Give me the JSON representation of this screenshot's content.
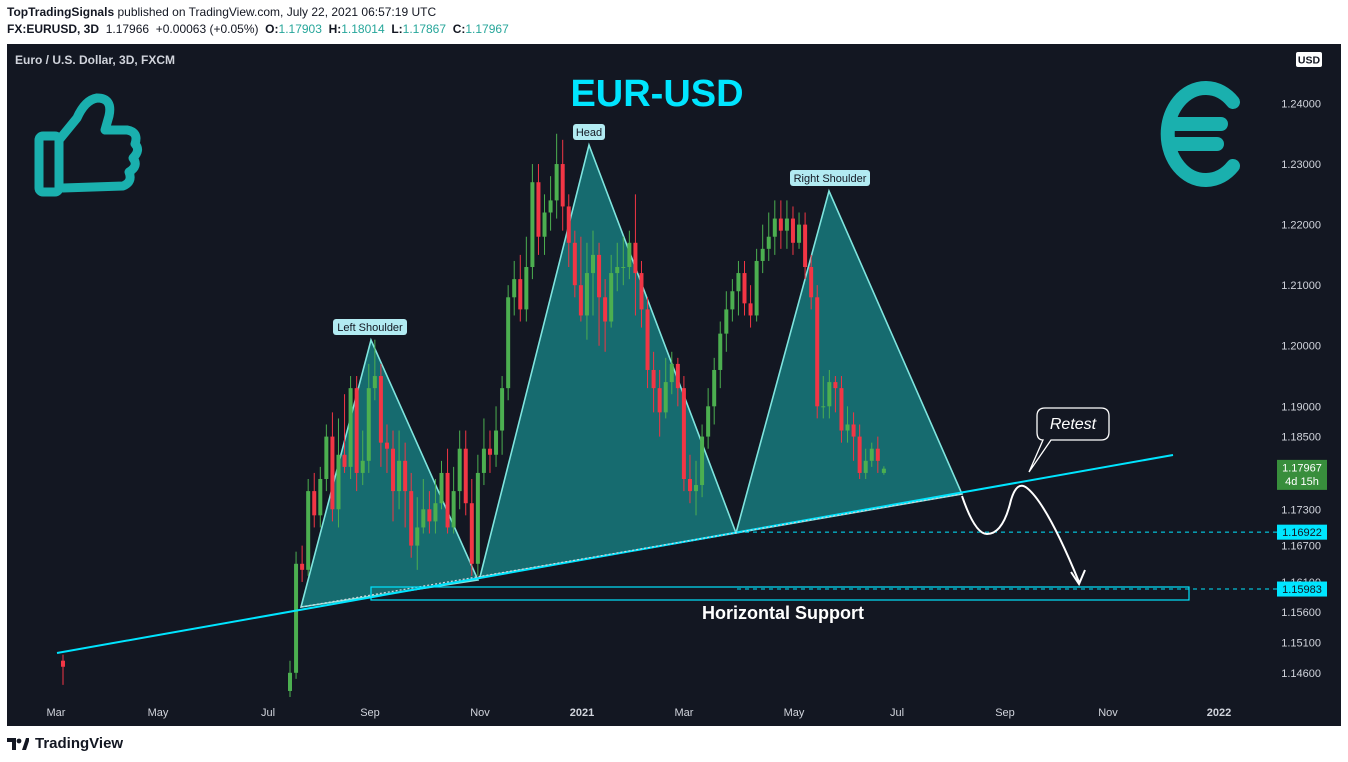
{
  "header": {
    "publisher": "TopTradingSignals",
    "published_text": "published on TradingView.com, July 22, 2021 06:57:19 UTC",
    "symbol": "FX:EURUSD, 3D",
    "last": "1.17966",
    "change": "+0.00063 (+0.05%)",
    "o_label": "O:",
    "o": "1.17903",
    "h_label": "H:",
    "h": "1.18014",
    "l_label": "L:",
    "l": "1.17867",
    "c_label": "C:",
    "c": "1.17967"
  },
  "chart_title_left": "Euro / U.S. Dollar, 3D, FXCM",
  "chart_data": {
    "type": "candlestick",
    "title": "EUR-USD",
    "currency": "USD",
    "ylim": [
      1.1425,
      1.2485
    ],
    "y_ticks": [
      {
        "value": 1.146,
        "label": "1.14600"
      },
      {
        "value": 1.151,
        "label": "1.15100"
      },
      {
        "value": 1.156,
        "label": "1.15600"
      },
      {
        "value": 1.161,
        "label": "1.16100"
      },
      {
        "value": 1.167,
        "label": "1.16700"
      },
      {
        "value": 1.173,
        "label": "1.17300"
      },
      {
        "value": 1.185,
        "label": "1.18500"
      },
      {
        "value": 1.19,
        "label": "1.19000"
      },
      {
        "value": 1.2,
        "label": "1.20000"
      },
      {
        "value": 1.21,
        "label": "1.21000"
      },
      {
        "value": 1.22,
        "label": "1.22000"
      },
      {
        "value": 1.23,
        "label": "1.23000"
      },
      {
        "value": 1.24,
        "label": "1.24000"
      }
    ],
    "x_ticks": [
      "Mar",
      "May",
      "Jul",
      "Sep",
      "Nov",
      "2021",
      "Mar",
      "May",
      "Jul",
      "Sep",
      "Nov",
      "2022"
    ],
    "price_labels": [
      {
        "label": "1.17967",
        "sub": "4d 15h",
        "value": 1.17967,
        "color": "#388e3c"
      },
      {
        "label": "1.16922",
        "value": 1.16922,
        "color": "#00e5ff"
      },
      {
        "label": "1.15983",
        "value": 1.15983,
        "color": "#00e5ff"
      }
    ],
    "pattern": {
      "name": "Head and Shoulders",
      "labels": [
        "Left Shoulder",
        "Head",
        "Right Shoulder"
      ]
    },
    "annotations": [
      "Retest",
      "Horizontal Support"
    ],
    "candles": [
      [
        1.148,
        1.147,
        1.149,
        1.144
      ],
      [
        1.143,
        1.146,
        1.148,
        1.142
      ],
      [
        1.146,
        1.164,
        1.166,
        1.145
      ],
      [
        1.164,
        1.163,
        1.167,
        1.161
      ],
      [
        1.163,
        1.176,
        1.178,
        1.162
      ],
      [
        1.176,
        1.172,
        1.179,
        1.17
      ],
      [
        1.172,
        1.178,
        1.18,
        1.17
      ],
      [
        1.178,
        1.185,
        1.187,
        1.176
      ],
      [
        1.185,
        1.173,
        1.189,
        1.171
      ],
      [
        1.173,
        1.182,
        1.188,
        1.17
      ],
      [
        1.182,
        1.18,
        1.192,
        1.179
      ],
      [
        1.18,
        1.193,
        1.195,
        1.178
      ],
      [
        1.193,
        1.179,
        1.195,
        1.176
      ],
      [
        1.179,
        1.181,
        1.186,
        1.177
      ],
      [
        1.181,
        1.193,
        1.197,
        1.179
      ],
      [
        1.193,
        1.195,
        1.201,
        1.191
      ],
      [
        1.195,
        1.184,
        1.197,
        1.18
      ],
      [
        1.184,
        1.183,
        1.187,
        1.179
      ],
      [
        1.183,
        1.176,
        1.186,
        1.171
      ],
      [
        1.176,
        1.181,
        1.186,
        1.173
      ],
      [
        1.181,
        1.176,
        1.184,
        1.17
      ],
      [
        1.176,
        1.167,
        1.179,
        1.165
      ],
      [
        1.167,
        1.17,
        1.175,
        1.163
      ],
      [
        1.17,
        1.173,
        1.178,
        1.169
      ],
      [
        1.173,
        1.171,
        1.176,
        1.169
      ],
      [
        1.171,
        1.174,
        1.178,
        1.169
      ],
      [
        1.174,
        1.179,
        1.181,
        1.173
      ],
      [
        1.179,
        1.17,
        1.183,
        1.169
      ],
      [
        1.17,
        1.176,
        1.18,
        1.169
      ],
      [
        1.176,
        1.183,
        1.186,
        1.173
      ],
      [
        1.183,
        1.174,
        1.186,
        1.172
      ],
      [
        1.174,
        1.164,
        1.178,
        1.162
      ],
      [
        1.164,
        1.179,
        1.182,
        1.162
      ],
      [
        1.179,
        1.183,
        1.188,
        1.177
      ],
      [
        1.183,
        1.182,
        1.186,
        1.179
      ],
      [
        1.182,
        1.186,
        1.19,
        1.18
      ],
      [
        1.186,
        1.193,
        1.195,
        1.182
      ],
      [
        1.193,
        1.208,
        1.21,
        1.191
      ],
      [
        1.208,
        1.211,
        1.214,
        1.205
      ],
      [
        1.211,
        1.206,
        1.215,
        1.204
      ],
      [
        1.206,
        1.213,
        1.218,
        1.204
      ],
      [
        1.213,
        1.227,
        1.23,
        1.211
      ],
      [
        1.227,
        1.218,
        1.23,
        1.215
      ],
      [
        1.218,
        1.222,
        1.225,
        1.215
      ],
      [
        1.222,
        1.224,
        1.228,
        1.219
      ],
      [
        1.224,
        1.23,
        1.235,
        1.221
      ],
      [
        1.23,
        1.223,
        1.234,
        1.219
      ],
      [
        1.223,
        1.217,
        1.225,
        1.213
      ],
      [
        1.217,
        1.21,
        1.219,
        1.208
      ],
      [
        1.21,
        1.205,
        1.218,
        1.204
      ],
      [
        1.205,
        1.212,
        1.217,
        1.201
      ],
      [
        1.212,
        1.215,
        1.219,
        1.205
      ],
      [
        1.215,
        1.208,
        1.217,
        1.2
      ],
      [
        1.208,
        1.204,
        1.211,
        1.199
      ],
      [
        1.204,
        1.212,
        1.215,
        1.203
      ],
      [
        1.212,
        1.213,
        1.217,
        1.209
      ],
      [
        1.213,
        1.213,
        1.218,
        1.21
      ],
      [
        1.213,
        1.217,
        1.219,
        1.211
      ],
      [
        1.217,
        1.212,
        1.225,
        1.205
      ],
      [
        1.212,
        1.206,
        1.214,
        1.203
      ],
      [
        1.206,
        1.196,
        1.208,
        1.193
      ],
      [
        1.196,
        1.193,
        1.199,
        1.189
      ],
      [
        1.193,
        1.189,
        1.196,
        1.185
      ],
      [
        1.189,
        1.194,
        1.198,
        1.188
      ],
      [
        1.194,
        1.197,
        1.199,
        1.192
      ],
      [
        1.197,
        1.193,
        1.198,
        1.19
      ],
      [
        1.193,
        1.178,
        1.195,
        1.176
      ],
      [
        1.178,
        1.176,
        1.182,
        1.174
      ],
      [
        1.176,
        1.177,
        1.181,
        1.172
      ],
      [
        1.177,
        1.185,
        1.187,
        1.175
      ],
      [
        1.185,
        1.19,
        1.193,
        1.183
      ],
      [
        1.19,
        1.196,
        1.198,
        1.187
      ],
      [
        1.196,
        1.202,
        1.204,
        1.193
      ],
      [
        1.202,
        1.206,
        1.209,
        1.199
      ],
      [
        1.206,
        1.209,
        1.211,
        1.204
      ],
      [
        1.209,
        1.212,
        1.214,
        1.205
      ],
      [
        1.212,
        1.207,
        1.214,
        1.205
      ],
      [
        1.207,
        1.205,
        1.21,
        1.203
      ],
      [
        1.205,
        1.214,
        1.216,
        1.204
      ],
      [
        1.214,
        1.216,
        1.22,
        1.212
      ],
      [
        1.216,
        1.218,
        1.222,
        1.214
      ],
      [
        1.218,
        1.221,
        1.224,
        1.215
      ],
      [
        1.221,
        1.219,
        1.224,
        1.216
      ],
      [
        1.219,
        1.221,
        1.224,
        1.216
      ],
      [
        1.221,
        1.217,
        1.223,
        1.215
      ],
      [
        1.217,
        1.22,
        1.222,
        1.216
      ],
      [
        1.22,
        1.213,
        1.222,
        1.211
      ],
      [
        1.213,
        1.208,
        1.215,
        1.206
      ],
      [
        1.208,
        1.19,
        1.21,
        1.188
      ],
      [
        1.19,
        1.19,
        1.195,
        1.188
      ],
      [
        1.19,
        1.194,
        1.196,
        1.188
      ],
      [
        1.194,
        1.193,
        1.195,
        1.189
      ],
      [
        1.193,
        1.186,
        1.195,
        1.184
      ],
      [
        1.186,
        1.187,
        1.19,
        1.184
      ],
      [
        1.187,
        1.185,
        1.189,
        1.181
      ],
      [
        1.185,
        1.179,
        1.187,
        1.178
      ],
      [
        1.179,
        1.181,
        1.183,
        1.178
      ],
      [
        1.181,
        1.183,
        1.184,
        1.18
      ],
      [
        1.183,
        1.181,
        1.185,
        1.179
      ],
      [
        1.179,
        1.1797,
        1.1801,
        1.1787
      ]
    ]
  },
  "footer": {
    "brand": "TradingView"
  }
}
